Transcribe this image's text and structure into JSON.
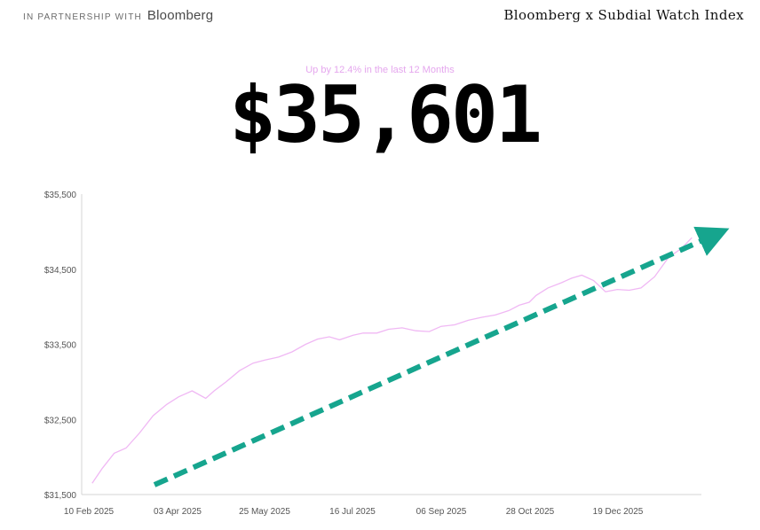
{
  "header": {
    "partnership_prefix": "IN PARTNERSHIP WITH",
    "partnership_brand": "Bloomberg",
    "index_title": "Bloomberg x Subdial Watch Index"
  },
  "summary": {
    "change_text": "Up by 12.4% in the last 12 Months",
    "current_value": "$35,601"
  },
  "colors": {
    "line": "#f0b8f4",
    "arrow": "#16a58e",
    "axis": "#d6d6d6",
    "subtitle": "#e5a7ee"
  },
  "chart_data": {
    "type": "line",
    "title": "",
    "xlabel": "",
    "ylabel": "",
    "ylim": [
      31500,
      35500
    ],
    "y_ticks": [
      31500,
      32500,
      33500,
      34500,
      35500
    ],
    "y_tick_labels": [
      "$31,500",
      "$32,500",
      "$33,500",
      "$34,500",
      "$35,500"
    ],
    "x_tick_labels": [
      "10 Feb 2025",
      "03 Apr 2025",
      "25 May 2025",
      "16 Jul 2025",
      "06 Sep 2025",
      "28 Oct 2025",
      "19 Dec 2025"
    ],
    "grid": false,
    "legend": "none",
    "series": [
      {
        "x": [
          "2025-02-12",
          "2025-02-18",
          "2025-02-25",
          "2025-03-04",
          "2025-03-12",
          "2025-03-20",
          "2025-03-28",
          "2025-04-04",
          "2025-04-12",
          "2025-04-20",
          "2025-04-25",
          "2025-05-02",
          "2025-05-10",
          "2025-05-18",
          "2025-05-25",
          "2025-06-02",
          "2025-06-10",
          "2025-06-18",
          "2025-06-25",
          "2025-07-02",
          "2025-07-08",
          "2025-07-16",
          "2025-07-22",
          "2025-07-30",
          "2025-08-06",
          "2025-08-14",
          "2025-08-22",
          "2025-08-30",
          "2025-09-06",
          "2025-09-14",
          "2025-09-22",
          "2025-09-30",
          "2025-10-08",
          "2025-10-16",
          "2025-10-22",
          "2025-10-28",
          "2025-11-01",
          "2025-11-08",
          "2025-11-16",
          "2025-11-22",
          "2025-11-28",
          "2025-12-05",
          "2025-12-12",
          "2025-12-19",
          "2025-12-26",
          "2026-01-02",
          "2026-01-10",
          "2026-01-18",
          "2026-01-26",
          "2026-02-01"
        ],
        "values": [
          31650,
          31850,
          32050,
          32120,
          32320,
          32550,
          32700,
          32800,
          32880,
          32780,
          32880,
          33000,
          33150,
          33250,
          33290,
          33330,
          33400,
          33500,
          33570,
          33600,
          33560,
          33620,
          33650,
          33650,
          33700,
          33720,
          33680,
          33670,
          33740,
          33760,
          33820,
          33860,
          33890,
          33950,
          34020,
          34060,
          34150,
          34250,
          34320,
          34380,
          34420,
          34350,
          34200,
          34230,
          34220,
          34250,
          34400,
          34650,
          34780,
          34920
        ]
      }
    ]
  }
}
